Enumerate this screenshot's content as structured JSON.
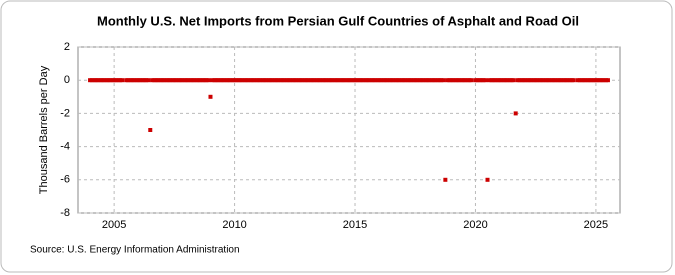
{
  "chart_data": {
    "type": "scatter",
    "title": "Monthly U.S. Net Imports from Persian Gulf Countries of Asphalt and Road Oil",
    "y_label": "Thousand Barrels per Day",
    "source": "Source: U.S. Energy Information Administration",
    "xlim": [
      2003.5,
      2026
    ],
    "xticks": [
      2005,
      2010,
      2015,
      2020,
      2025
    ],
    "ylim": [
      -8,
      2
    ],
    "yticks": [
      -8,
      -6,
      -4,
      -2,
      0,
      2
    ],
    "grid": true,
    "series": [
      {
        "color": "#cc0000",
        "x": [
          2004,
          2004.08,
          2004.17,
          2004.25,
          2004.33,
          2004.42,
          2004.5,
          2004.58,
          2004.67,
          2004.75,
          2004.83,
          2004.92,
          2005,
          2005.08,
          2005.17,
          2005.25,
          2005.33,
          2005.5,
          2005.58,
          2005.67,
          2005.75,
          2005.83,
          2005.92,
          2006,
          2006.08,
          2006.17,
          2006.25,
          2006.33,
          2006.42,
          2006.5,
          2006.58,
          2006.67,
          2006.75,
          2006.83,
          2006.92,
          2007,
          2007.08,
          2007.17,
          2007.25,
          2007.33,
          2007.42,
          2007.5,
          2007.58,
          2007.67,
          2007.75,
          2007.83,
          2007.92,
          2008,
          2008.08,
          2008.17,
          2008.25,
          2008.33,
          2008.42,
          2008.5,
          2008.58,
          2008.67,
          2008.75,
          2008.83,
          2008.92,
          2009,
          2009.08,
          2009.17,
          2009.25,
          2009.33,
          2009.42,
          2009.5,
          2009.58,
          2009.67,
          2009.75,
          2009.83,
          2009.92,
          2010,
          2010.08,
          2010.17,
          2010.25,
          2010.33,
          2010.42,
          2010.5,
          2010.58,
          2010.67,
          2010.75,
          2010.83,
          2010.92,
          2011,
          2011.08,
          2011.17,
          2011.25,
          2011.33,
          2011.42,
          2011.5,
          2011.58,
          2011.67,
          2011.75,
          2011.83,
          2011.92,
          2012,
          2012.08,
          2012.17,
          2012.25,
          2012.33,
          2012.42,
          2012.5,
          2012.58,
          2012.67,
          2012.75,
          2012.83,
          2012.92,
          2013,
          2013.08,
          2013.17,
          2013.25,
          2013.33,
          2013.42,
          2013.5,
          2013.58,
          2013.67,
          2013.75,
          2013.83,
          2013.92,
          2014,
          2014.08,
          2014.17,
          2014.25,
          2014.33,
          2014.42,
          2014.5,
          2014.58,
          2014.67,
          2014.75,
          2014.83,
          2014.92,
          2015,
          2015.08,
          2015.17,
          2015.25,
          2015.33,
          2015.42,
          2015.5,
          2015.58,
          2015.67,
          2015.75,
          2015.83,
          2015.92,
          2016,
          2016.08,
          2016.17,
          2016.25,
          2016.33,
          2016.42,
          2016.5,
          2016.58,
          2016.67,
          2016.75,
          2016.83,
          2016.92,
          2017,
          2017.08,
          2017.17,
          2017.25,
          2017.33,
          2017.42,
          2017.5,
          2017.58,
          2017.67,
          2017.75,
          2017.83,
          2017.92,
          2018,
          2018.08,
          2018.17,
          2018.25,
          2018.33,
          2018.42,
          2018.5,
          2018.58,
          2018.67,
          2018.75,
          2018.83,
          2018.92,
          2019,
          2019.08,
          2019.17,
          2019.25,
          2019.33,
          2019.42,
          2019.5,
          2019.58,
          2019.67,
          2019.75,
          2019.83,
          2020,
          2020.08,
          2020.17,
          2020.25,
          2020.33,
          2020.42,
          2020.5,
          2020.58,
          2020.67,
          2020.75,
          2020.83,
          2020.92,
          2021,
          2021.08,
          2021.17,
          2021.25,
          2021.33,
          2021.42,
          2021.5,
          2021.58,
          2021.67,
          2021.75,
          2021.83,
          2021.92,
          2022,
          2022.08,
          2022.17,
          2022.25,
          2022.33,
          2022.42,
          2022.5,
          2022.58,
          2022.67,
          2022.75,
          2022.83,
          2022.92,
          2023,
          2023.08,
          2023.17,
          2023.25,
          2023.33,
          2023.42,
          2023.5,
          2023.58,
          2023.67,
          2023.75,
          2023.83,
          2023.92,
          2024,
          2024.08,
          2024.25,
          2024.33,
          2024.42,
          2024.5,
          2024.58,
          2024.67,
          2024.75,
          2024.83,
          2024.92,
          2025,
          2025.08,
          2025.17,
          2025.25,
          2025.33,
          2025.42,
          2025.5
        ],
        "values": [
          0,
          0,
          0,
          0,
          0,
          0,
          0,
          0,
          0,
          0,
          0,
          0,
          0,
          0,
          0,
          0,
          0,
          0,
          0,
          0,
          0,
          0,
          0,
          0,
          0,
          0,
          0,
          0,
          0,
          -3,
          0,
          0,
          0,
          0,
          0,
          0,
          0,
          0,
          0,
          0,
          0,
          0,
          0,
          0,
          0,
          0,
          0,
          0,
          0,
          0,
          0,
          0,
          0,
          0,
          0,
          0,
          0,
          0,
          0,
          -1,
          0,
          0,
          0,
          0,
          0,
          0,
          0,
          0,
          0,
          0,
          0,
          0,
          0,
          0,
          0,
          0,
          0,
          0,
          0,
          0,
          0,
          0,
          0,
          0,
          0,
          0,
          0,
          0,
          0,
          0,
          0,
          0,
          0,
          0,
          0,
          0,
          0,
          0,
          0,
          0,
          0,
          0,
          0,
          0,
          0,
          0,
          0,
          0,
          0,
          0,
          0,
          0,
          0,
          0,
          0,
          0,
          0,
          0,
          0,
          0,
          0,
          0,
          0,
          0,
          0,
          0,
          0,
          0,
          0,
          0,
          0,
          0,
          0,
          0,
          0,
          0,
          0,
          0,
          0,
          0,
          0,
          0,
          0,
          0,
          0,
          0,
          0,
          0,
          0,
          0,
          0,
          0,
          0,
          0,
          0,
          0,
          0,
          0,
          0,
          0,
          0,
          0,
          0,
          0,
          0,
          0,
          0,
          0,
          0,
          0,
          0,
          0,
          0,
          0,
          0,
          0,
          -6,
          0,
          0,
          0,
          0,
          0,
          0,
          0,
          0,
          0,
          0,
          0,
          0,
          0,
          0,
          0,
          0,
          0,
          0,
          0,
          -6,
          0,
          0,
          0,
          0,
          0,
          0,
          0,
          0,
          0,
          0,
          0,
          0,
          0,
          -2,
          0,
          0,
          0,
          0,
          0,
          0,
          0,
          0,
          0,
          0,
          0,
          0,
          0,
          0,
          0,
          0,
          0,
          0,
          0,
          0,
          0,
          0,
          0,
          0,
          0,
          0,
          0,
          0,
          0,
          0,
          0,
          0,
          0,
          0,
          0,
          0,
          0,
          0,
          0,
          0,
          0,
          0,
          0,
          0,
          0
        ]
      }
    ]
  }
}
